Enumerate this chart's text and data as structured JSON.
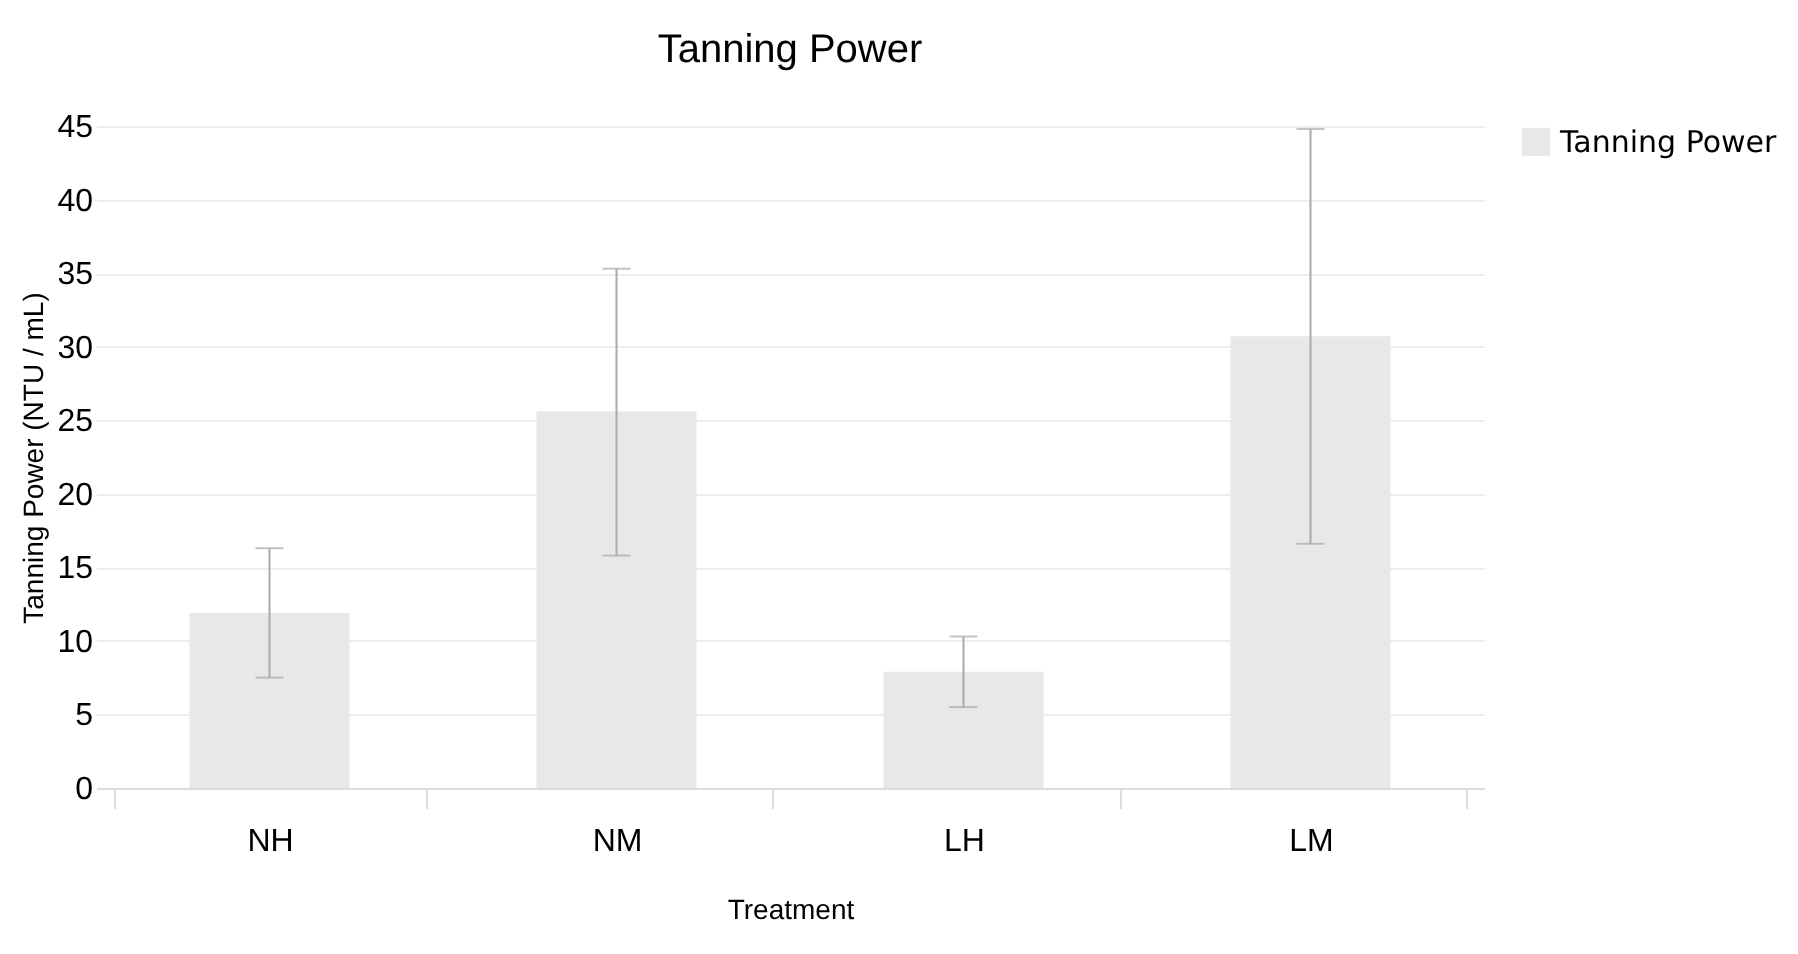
{
  "chart_data": {
    "type": "bar",
    "title": "Tanning Power",
    "xlabel": "Treatment",
    "ylabel": "Tanning Power (NTU / mL)",
    "categories": [
      "NH",
      "NM",
      "LH",
      "LM"
    ],
    "series": [
      {
        "name": "Tanning Power",
        "color": "#e8e8e6",
        "values": [
          11.9,
          25.6,
          7.9,
          30.7
        ],
        "errors": [
          [
            7.5,
            16.3
          ],
          [
            15.8,
            35.3
          ],
          [
            5.5,
            10.3
          ],
          [
            16.6,
            44.8
          ]
        ]
      }
    ],
    "ylim": [
      0,
      45
    ],
    "yticks": [
      0,
      5,
      10,
      15,
      20,
      25,
      30,
      35,
      40,
      45
    ],
    "grid": "y",
    "legend": "right"
  }
}
